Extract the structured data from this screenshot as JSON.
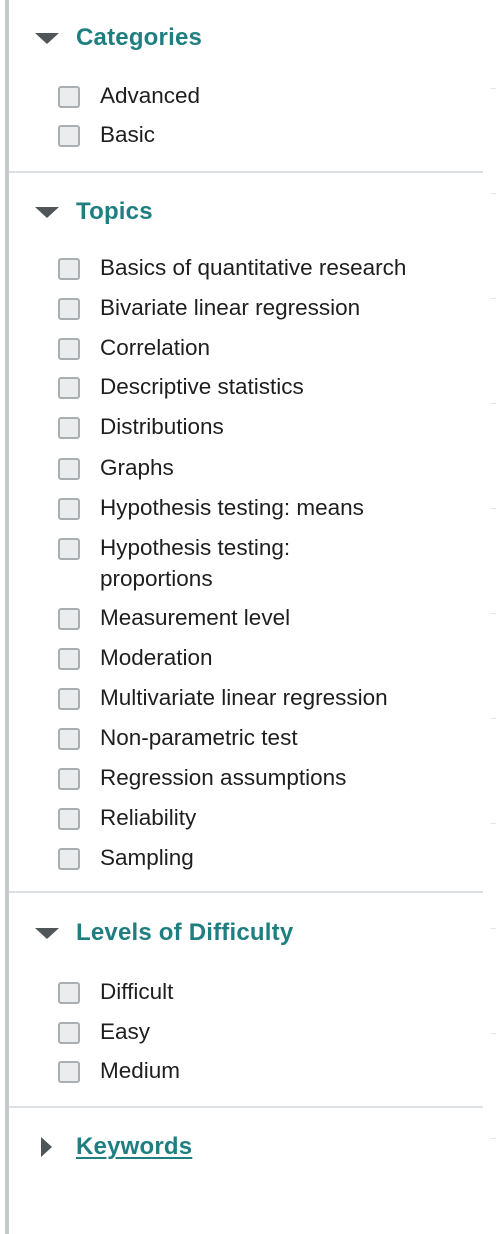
{
  "sections": [
    {
      "title": "Categories",
      "expanded": true,
      "options": [
        "Advanced",
        "Basic"
      ]
    },
    {
      "title": "Topics",
      "expanded": true,
      "options": [
        "Basics of quantitative research",
        "Bivariate linear regression",
        "Correlation",
        "Descriptive statistics",
        "Distributions",
        "Graphs",
        "Hypothesis testing: means",
        "Hypothesis testing: proportions",
        "Measurement level",
        "Moderation",
        "Multivariate linear regression",
        "Non-parametric test",
        "Regression assumptions",
        "Reliability",
        "Sampling"
      ]
    },
    {
      "title": "Levels of Difficulty",
      "expanded": true,
      "options": [
        "Difficult",
        "Easy",
        "Medium"
      ]
    },
    {
      "title": "Keywords",
      "expanded": false,
      "options": []
    }
  ],
  "colors": {
    "heading": "#1f7f80",
    "arrow": "#4f5658",
    "checkbox_fill": "#eaeced",
    "checkbox_border": "#a9afb1"
  },
  "icons": {
    "expanded": "caret-down-icon",
    "collapsed": "caret-right-icon"
  }
}
